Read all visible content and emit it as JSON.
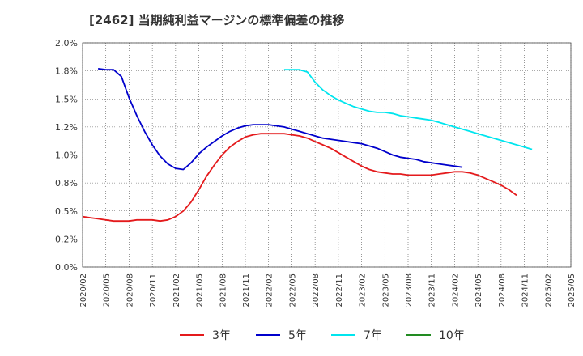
{
  "chart_data": {
    "type": "line",
    "title": "[2462]  当期純利益マージンの標準偏差の推移",
    "xlabel": "",
    "ylabel": "",
    "ylim": [
      0,
      2.0
    ],
    "yticks": [
      "0.0%",
      "0.2%",
      "0.5%",
      "0.8%",
      "1.0%",
      "1.2%",
      "1.5%",
      "1.8%",
      "2.0%"
    ],
    "xticks": [
      "2020/02",
      "2020/05",
      "2020/08",
      "2020/11",
      "2021/02",
      "2021/05",
      "2021/08",
      "2021/11",
      "2022/02",
      "2022/05",
      "2022/08",
      "2022/11",
      "2023/02",
      "2023/05",
      "2023/08",
      "2023/11",
      "2024/02",
      "2024/05",
      "2024/08",
      "2024/11",
      "2025/02",
      "2025/05"
    ],
    "grid": true,
    "legend_position": "bottom",
    "series": [
      {
        "name": "3年",
        "color": "#e41a1c",
        "start": "2020/02",
        "values": [
          0.45,
          0.44,
          0.43,
          0.42,
          0.41,
          0.41,
          0.41,
          0.42,
          0.42,
          0.42,
          0.41,
          0.42,
          0.45,
          0.5,
          0.58,
          0.69,
          0.81,
          0.91,
          1.0,
          1.07,
          1.12,
          1.16,
          1.18,
          1.19,
          1.19,
          1.19,
          1.19,
          1.18,
          1.17,
          1.15,
          1.12,
          1.09,
          1.06,
          1.02,
          0.98,
          0.94,
          0.9,
          0.87,
          0.85,
          0.84,
          0.83,
          0.83,
          0.82,
          0.82,
          0.82,
          0.82,
          0.83,
          0.84,
          0.85,
          0.85,
          0.84,
          0.82,
          0.79,
          0.76,
          0.73,
          0.69,
          0.64
        ]
      },
      {
        "name": "5年",
        "color": "#0000cc",
        "start": "2020/04",
        "values": [
          1.77,
          1.76,
          1.76,
          1.7,
          1.51,
          1.35,
          1.21,
          1.09,
          0.99,
          0.92,
          0.88,
          0.87,
          0.93,
          1.01,
          1.07,
          1.12,
          1.17,
          1.21,
          1.24,
          1.26,
          1.27,
          1.27,
          1.27,
          1.26,
          1.25,
          1.23,
          1.21,
          1.19,
          1.17,
          1.15,
          1.14,
          1.13,
          1.12,
          1.11,
          1.1,
          1.08,
          1.06,
          1.03,
          1.0,
          0.98,
          0.97,
          0.96,
          0.94,
          0.93,
          0.92,
          0.91,
          0.9,
          0.89
        ]
      },
      {
        "name": "7年",
        "color": "#00e5ee",
        "start": "2022/04",
        "values": [
          1.76,
          1.76,
          1.76,
          1.74,
          1.65,
          1.58,
          1.53,
          1.49,
          1.46,
          1.43,
          1.41,
          1.39,
          1.38,
          1.38,
          1.37,
          1.35,
          1.34,
          1.33,
          1.32,
          1.31,
          1.29,
          1.27,
          1.25,
          1.23,
          1.21,
          1.19,
          1.17,
          1.15,
          1.13,
          1.11,
          1.09,
          1.07,
          1.05
        ]
      },
      {
        "name": "10年",
        "color": "#228b22",
        "start": "2025/02",
        "values": []
      }
    ]
  }
}
